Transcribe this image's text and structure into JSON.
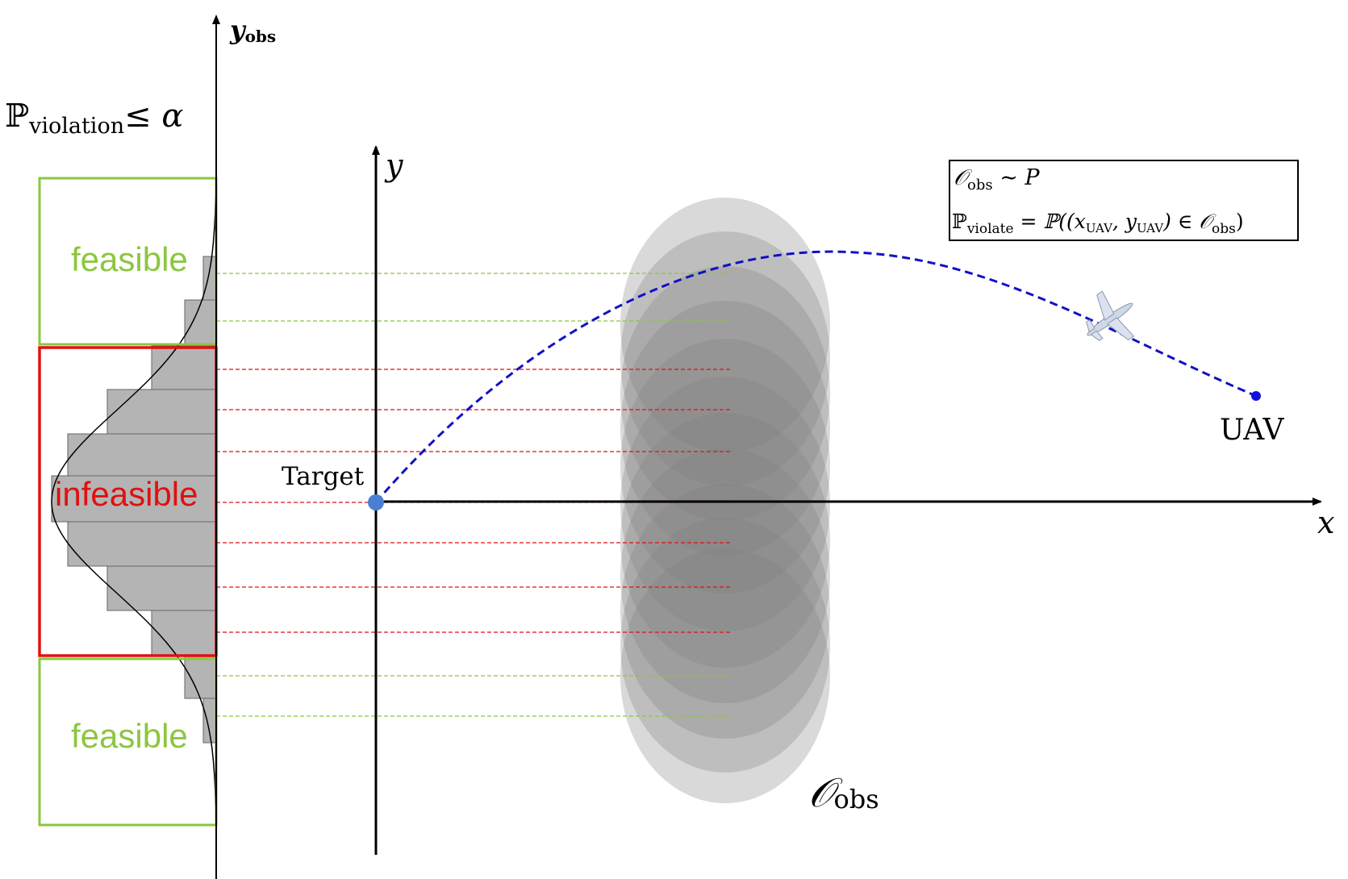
{
  "colors": {
    "feasible": "#8cc63f",
    "infeasible": "#e01010",
    "trajectory": "#1010c8",
    "target_dot": "#4a7fd4",
    "uav_dot": "#1010e0",
    "histogram_fill": "#b4b4b4",
    "obstacle_fill": "#808080"
  },
  "left_axis": {
    "label_main": "y",
    "label_sub": "obs"
  },
  "violation_constraint": {
    "prob_symbol": "ℙ",
    "prob_sub": "violation",
    "relation": "≤ α"
  },
  "regions": {
    "feasible_top": "feasible",
    "infeasible": "infeasible",
    "feasible_bottom": "feasible"
  },
  "main_axes": {
    "x_label": "x",
    "y_label": "y"
  },
  "target_label": "Target",
  "uav_label": "UAV",
  "obstacle_label": {
    "main": "𝒪",
    "sub": "obs"
  },
  "legend": {
    "line1_obs": "𝒪",
    "line1_obs_sub": "obs",
    "line1_rest": " ∼ P",
    "line2_prob": "ℙ",
    "line2_prob_sub": "violate",
    "line2_eq": " = ℙ((x",
    "line2_uav_sub_1": "UAV",
    "line2_comma": ", y",
    "line2_uav_sub_2": "UAV",
    "line2_in": ") ∈ 𝒪",
    "line2_obs_sub": "obs",
    "line2_close": ")"
  }
}
